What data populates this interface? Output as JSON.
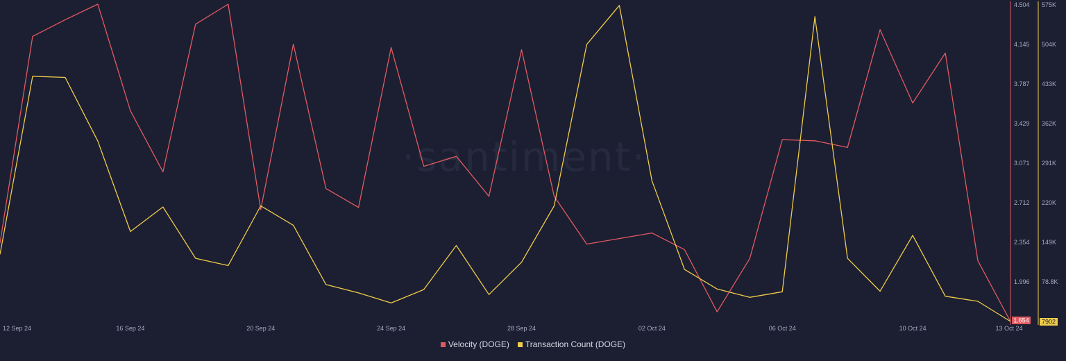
{
  "watermark": "·santiment·",
  "colors": {
    "background": "#1c1f31",
    "velocity": "#e05a63",
    "tx_count": "#f0cc4b"
  },
  "chart_data": {
    "type": "line",
    "x": [
      "12 Sep 24",
      "13 Sep 24",
      "14 Sep 24",
      "15 Sep 24",
      "16 Sep 24",
      "17 Sep 24",
      "18 Sep 24",
      "19 Sep 24",
      "20 Sep 24",
      "21 Sep 24",
      "22 Sep 24",
      "23 Sep 24",
      "24 Sep 24",
      "25 Sep 24",
      "26 Sep 24",
      "27 Sep 24",
      "28 Sep 24",
      "29 Sep 24",
      "30 Sep 24",
      "01 Oct 24",
      "02 Oct 24",
      "03 Oct 24",
      "04 Oct 24",
      "05 Oct 24",
      "06 Oct 24",
      "07 Oct 24",
      "08 Oct 24",
      "09 Oct 24",
      "10 Oct 24",
      "11 Oct 24",
      "12 Oct 24",
      "13 Oct 24"
    ],
    "x_tick_labels": [
      "12 Sep 24",
      "16 Sep 24",
      "20 Sep 24",
      "24 Sep 24",
      "28 Sep 24",
      "02 Oct 24",
      "06 Oct 24",
      "10 Oct 24",
      "13 Oct 24"
    ],
    "series": [
      {
        "name": "Velocity (DOGE)",
        "axis": "left",
        "color": "#e05a63",
        "values": [
          2.36,
          4.22,
          4.37,
          4.51,
          3.55,
          3.0,
          4.33,
          4.51,
          2.66,
          4.15,
          2.85,
          2.68,
          4.12,
          3.05,
          3.14,
          2.78,
          4.1,
          2.78,
          2.35,
          2.4,
          2.45,
          2.3,
          1.74,
          2.22,
          3.29,
          3.28,
          3.22,
          4.28,
          3.62,
          4.07,
          2.2,
          1.654
        ]
      },
      {
        "name": "Transaction Count (DOGE)",
        "axis": "right",
        "color": "#f0cc4b",
        "values": [
          128000,
          447000,
          445000,
          331000,
          169000,
          213000,
          121000,
          108000,
          215000,
          180000,
          74000,
          59000,
          41000,
          65000,
          144000,
          56000,
          114000,
          215000,
          504000,
          574000,
          260000,
          101000,
          66000,
          51000,
          61000,
          554000,
          121000,
          62000,
          162000,
          53000,
          44000,
          7902
        ]
      }
    ],
    "y_left": {
      "ticks": [
        "4.504",
        "4.145",
        "3.787",
        "3.429",
        "3.071",
        "2.712",
        "2.354",
        "1.996",
        "1.654"
      ],
      "range": [
        1.654,
        4.504
      ],
      "last_value": "1.654"
    },
    "y_right": {
      "ticks": [
        "575K",
        "504K",
        "433K",
        "362K",
        "291K",
        "220K",
        "149K",
        "78.8K",
        "7902"
      ],
      "range": [
        7902,
        575000
      ],
      "last_value": "7902"
    },
    "grid": false,
    "legend_position": "bottom-center"
  }
}
